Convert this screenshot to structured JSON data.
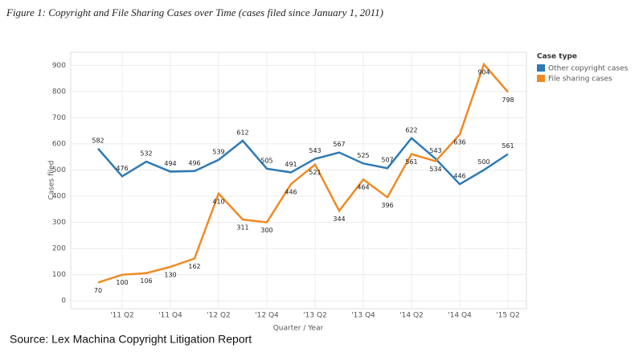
{
  "chart_data": {
    "type": "line",
    "title": "Figure 1: Copyright and File Sharing Cases over Time (cases filed since January 1, 2011)",
    "source": "Source: Lex Machina Copyright Litigation Report",
    "x_label": "Quarter / Year",
    "y_label": "Cases filed",
    "legend_title": "Case type",
    "categories": [
      null,
      "'11 Q2",
      null,
      "'11 Q4",
      null,
      "'12 Q2",
      null,
      "'12 Q4",
      null,
      "'13 Q2",
      null,
      "'13 Q4",
      null,
      "'14 Q2",
      null,
      "'14 Q4",
      null,
      "'15 Q2"
    ],
    "series": [
      {
        "name": "Other copyright cases",
        "color": "#2e7ab6",
        "values": [
          582,
          476,
          532,
          494,
          496,
          539,
          612,
          505,
          491,
          543,
          567,
          525,
          507,
          622,
          543,
          446,
          500,
          561
        ]
      },
      {
        "name": "File sharing cases",
        "color": "#f08a24",
        "values": [
          70,
          100,
          106,
          130,
          162,
          410,
          311,
          300,
          446,
          521,
          344,
          464,
          396,
          561,
          534,
          636,
          904,
          798
        ]
      }
    ],
    "ylim": [
      -30,
      950
    ],
    "yticks": [
      0,
      100,
      200,
      300,
      400,
      500,
      600,
      700,
      800,
      900
    ],
    "grid": true
  }
}
